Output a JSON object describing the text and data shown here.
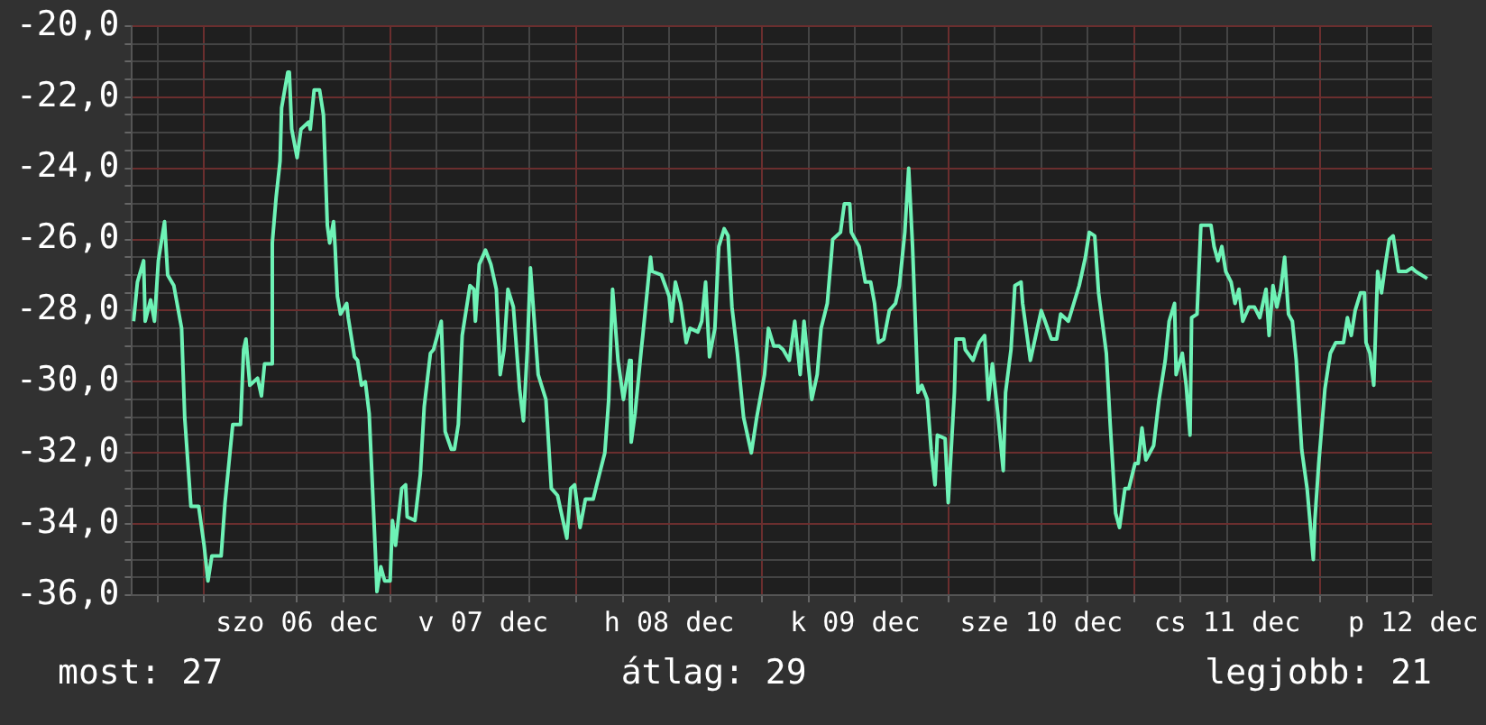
{
  "chart_data": {
    "type": "line",
    "grid": true,
    "legend": false,
    "marker": "none",
    "line_style": "solid",
    "xlim": [
      "--12-05T14:42",
      "--12-12T14:24"
    ],
    "xticks": [
      {
        "value": "--12-05T18:00",
        "label": null
      },
      {
        "value": "--12-06T00:00",
        "label": null
      },
      {
        "value": "--12-06T06:00",
        "label": null
      },
      {
        "value": "--12-06T12:00",
        "label": "szo 06 dec"
      },
      {
        "value": "--12-06T18:00",
        "label": null
      },
      {
        "value": "--12-07T00:00",
        "label": null
      },
      {
        "value": "--12-07T06:00",
        "label": null
      },
      {
        "value": "--12-07T12:00",
        "label": "v 07 dec"
      },
      {
        "value": "--12-07T18:00",
        "label": null
      },
      {
        "value": "--12-08T00:00",
        "label": null
      },
      {
        "value": "--12-08T06:00",
        "label": null
      },
      {
        "value": "--12-08T12:00",
        "label": "h 08 dec"
      },
      {
        "value": "--12-08T18:00",
        "label": null
      },
      {
        "value": "--12-09T00:00",
        "label": null
      },
      {
        "value": "--12-09T06:00",
        "label": null
      },
      {
        "value": "--12-09T12:00",
        "label": "k 09 dec"
      },
      {
        "value": "--12-09T18:00",
        "label": null
      },
      {
        "value": "--12-10T00:00",
        "label": null
      },
      {
        "value": "--12-10T06:00",
        "label": null
      },
      {
        "value": "--12-10T12:00",
        "label": "sze 10 dec"
      },
      {
        "value": "--12-10T18:00",
        "label": null
      },
      {
        "value": "--12-11T00:00",
        "label": null
      },
      {
        "value": "--12-11T06:00",
        "label": null
      },
      {
        "value": "--12-11T12:00",
        "label": "cs 11 dec"
      },
      {
        "value": "--12-11T18:00",
        "label": null
      },
      {
        "value": "--12-12T00:00",
        "label": null
      },
      {
        "value": "--12-12T06:00",
        "label": null
      },
      {
        "value": "--12-12T12:00",
        "label": "p 12 dec"
      }
    ],
    "ylim": [
      -36,
      -20
    ],
    "yticks": [
      {
        "value": -36,
        "label": "-36,0"
      },
      {
        "value": -35.5,
        "label": null
      },
      {
        "value": -35,
        "label": null
      },
      {
        "value": -34.5,
        "label": null
      },
      {
        "value": -34,
        "label": "-34,0"
      },
      {
        "value": -33.5,
        "label": null
      },
      {
        "value": -33,
        "label": null
      },
      {
        "value": -32.5,
        "label": null
      },
      {
        "value": -32,
        "label": "-32,0"
      },
      {
        "value": -31.5,
        "label": null
      },
      {
        "value": -31,
        "label": null
      },
      {
        "value": -30.5,
        "label": null
      },
      {
        "value": -30,
        "label": "-30,0"
      },
      {
        "value": -29.5,
        "label": null
      },
      {
        "value": -29,
        "label": null
      },
      {
        "value": -28.5,
        "label": null
      },
      {
        "value": -28,
        "label": "-28,0"
      },
      {
        "value": -27.5,
        "label": null
      },
      {
        "value": -27,
        "label": null
      },
      {
        "value": -26.5,
        "label": null
      },
      {
        "value": -26,
        "label": "-26,0"
      },
      {
        "value": -25.5,
        "label": null
      },
      {
        "value": -25,
        "label": null
      },
      {
        "value": -24.5,
        "label": null
      },
      {
        "value": -24,
        "label": "-24,0"
      },
      {
        "value": -23.5,
        "label": null
      },
      {
        "value": -23,
        "label": null
      },
      {
        "value": -22.5,
        "label": null
      },
      {
        "value": -22,
        "label": "-22,0"
      },
      {
        "value": -21.5,
        "label": null
      },
      {
        "value": -21,
        "label": null
      },
      {
        "value": -20.5,
        "label": null
      },
      {
        "value": -20,
        "label": "-20,0"
      }
    ],
    "annotations": [
      "most: 27",
      "átlag: 29",
      "legjobb: 21"
    ],
    "series": [
      {
        "color": "#6ef2b6",
        "x": [
          "--12-05T14:54",
          "--12-05T15:24",
          "--12-05T16:12",
          "--12-05T16:24",
          "--12-05T17:06",
          "--12-05T17:36",
          "--12-05T18:06",
          "--12-05T18:54",
          "--12-05T19:18",
          "--12-05T20:06",
          "--12-05T21:06",
          "--12-05T21:30",
          "--12-05T22:18",
          "--12-05T23:18",
          "--12-06T00:00",
          "--12-06T00:30",
          "--12-06T01:00",
          "--12-06T02:12",
          "--12-06T02:42",
          "--12-06T03:42",
          "--12-06T04:42",
          "--12-06T05:06",
          "--12-06T05:24",
          "--12-06T05:54",
          "--12-06T06:54",
          "--12-06T07:24",
          "--12-06T07:48",
          "--12-06T08:36",
          "--12-06T08:48",
          "--12-06T09:18",
          "--12-06T09:48",
          "--12-06T10:00",
          "--12-06T10:48",
          "--12-06T11:00",
          "--12-06T11:18",
          "--12-06T12:00",
          "--12-06T12:30",
          "--12-06T13:30",
          "--12-06T13:42",
          "--12-06T14:12",
          "--12-06T14:54",
          "--12-06T15:24",
          "--12-06T15:54",
          "--12-06T16:12",
          "--12-06T16:42",
          "--12-06T16:54",
          "--12-06T17:12",
          "--12-06T17:36",
          "--12-06T18:24",
          "--12-06T18:36",
          "--12-06T19:24",
          "--12-06T19:48",
          "--12-06T20:18",
          "--12-06T20:48",
          "--12-06T21:18",
          "--12-06T22:06",
          "--12-06T22:18",
          "--12-06T22:48",
          "--12-06T23:18",
          "--12-07T00:00",
          "--12-07T00:18",
          "--12-07T00:42",
          "--12-07T01:30",
          "--12-07T02:00",
          "--12-07T02:12",
          "--12-07T03:12",
          "--12-07T03:54",
          "--12-07T04:24",
          "--12-07T05:12",
          "--12-07T05:36",
          "--12-07T06:36",
          "--12-07T07:06",
          "--12-07T07:54",
          "--12-07T08:18",
          "--12-07T08:48",
          "--12-07T09:18",
          "--12-07T10:18",
          "--12-07T10:48",
          "--12-07T11:00",
          "--12-07T11:30",
          "--12-07T12:18",
          "--12-07T13:00",
          "--12-07T13:42",
          "--12-07T14:12",
          "--12-07T14:42",
          "--12-07T15:12",
          "--12-07T15:54",
          "--12-07T16:42",
          "--12-07T17:12",
          "--12-07T17:42",
          "--12-07T18:06",
          "--12-07T18:36",
          "--12-07T19:06",
          "--12-07T20:06",
          "--12-07T20:48",
          "--12-07T21:36",
          "--12-07T22:48",
          "--12-07T23:18",
          "--12-07T23:48",
          "--12-08T00:30",
          "--12-08T01:12",
          "--12-08T02:12",
          "--12-08T03:00",
          "--12-08T03:42",
          "--12-08T04:12",
          "--12-08T04:42",
          "--12-08T05:24",
          "--12-08T06:06",
          "--12-08T06:54",
          "--12-08T07:06",
          "--12-08T07:36",
          "--12-08T08:24",
          "--12-08T08:36",
          "--12-08T09:36",
          "--12-08T09:48",
          "--12-08T11:00",
          "--12-08T12:00",
          "--12-08T12:18",
          "--12-08T12:48",
          "--12-08T13:30",
          "--12-08T14:12",
          "--12-08T14:42",
          "--12-08T15:42",
          "--12-08T16:12",
          "--12-08T16:42",
          "--12-08T17:12",
          "--12-08T17:54",
          "--12-08T18:24",
          "--12-08T19:06",
          "--12-08T19:36",
          "--12-08T20:06",
          "--12-08T20:48",
          "--12-08T21:36",
          "--12-08T22:36",
          "--12-08T23:18",
          "--12-09T00:18",
          "--12-09T00:48",
          "--12-09T01:30",
          "--12-09T02:12",
          "--12-09T02:42",
          "--12-09T03:30",
          "--12-09T04:12",
          "--12-09T04:54",
          "--12-09T05:24",
          "--12-09T06:24",
          "--12-09T07:06",
          "--12-09T07:36",
          "--12-09T08:24",
          "--12-09T09:06",
          "--12-09T10:06",
          "--12-09T10:36",
          "--12-09T11:18",
          "--12-09T11:30",
          "--12-09T12:30",
          "--12-09T13:18",
          "--12-09T14:00",
          "--12-09T14:30",
          "--12-09T15:00",
          "--12-09T15:42",
          "--12-09T16:24",
          "--12-09T17:12",
          "--12-09T17:42",
          "--12-09T18:24",
          "--12-09T18:54",
          "--12-09T19:24",
          "--12-09T20:06",
          "--12-09T20:36",
          "--12-09T21:18",
          "--12-09T21:48",
          "--12-09T22:18",
          "--12-09T22:36",
          "--12-09T23:36",
          "--12-10T00:00",
          "--12-10T00:48",
          "--12-10T01:00",
          "--12-10T02:00",
          "--12-10T02:12",
          "--12-10T03:12",
          "--12-10T04:00",
          "--12-10T04:42",
          "--12-10T05:12",
          "--12-10T05:42",
          "--12-10T06:24",
          "--12-10T07:06",
          "--12-10T07:24",
          "--12-10T08:06",
          "--12-10T08:36",
          "--12-10T09:24",
          "--12-10T09:36",
          "--12-10T10:36",
          "--12-10T11:18",
          "--12-10T12:00",
          "--12-10T12:30",
          "--12-10T13:18",
          "--12-10T14:00",
          "--12-10T14:30",
          "--12-10T15:30",
          "--12-10T16:12",
          "--12-10T16:54",
          "--12-10T17:42",
          "--12-10T18:12",
          "--12-10T18:54",
          "--12-10T19:24",
          "--12-10T20:24",
          "--12-10T20:54",
          "--12-10T21:36",
          "--12-10T22:06",
          "--12-10T22:48",
          "--12-10T23:18",
          "--12-11T00:06",
          "--12-11T00:30",
          "--12-11T01:00",
          "--12-11T01:30",
          "--12-11T02:30",
          "--12-11T03:12",
          "--12-11T04:00",
          "--12-11T04:30",
          "--12-11T05:12",
          "--12-11T05:24",
          "--12-11T06:12",
          "--12-11T06:42",
          "--12-11T07:12",
          "--12-11T07:24",
          "--12-11T08:06",
          "--12-11T08:36",
          "--12-11T09:54",
          "--12-11T10:18",
          "--12-11T10:48",
          "--12-11T11:18",
          "--12-11T11:48",
          "--12-11T12:30",
          "--12-11T13:00",
          "--12-11T13:30",
          "--12-11T14:00",
          "--12-11T14:48",
          "--12-11T15:30",
          "--12-11T16:12",
          "--12-11T17:00",
          "--12-11T17:24",
          "--12-11T17:54",
          "--12-11T18:24",
          "--12-11T18:54",
          "--12-11T19:24",
          "--12-11T19:54",
          "--12-11T20:24",
          "--12-11T20:54",
          "--12-11T21:36",
          "--12-11T22:18",
          "--12-11T23:06",
          "--12-11T23:18",
          "--12-11T23:48",
          "--12-12T00:36",
          "--12-12T01:18",
          "--12-12T02:00",
          "--12-12T03:00",
          "--12-12T03:30",
          "--12-12T04:00",
          "--12-12T04:30",
          "--12-12T05:12",
          "--12-12T05:42",
          "--12-12T05:54",
          "--12-12T06:24",
          "--12-12T06:54",
          "--12-12T07:24",
          "--12-12T07:54",
          "--12-12T08:24",
          "--12-12T08:54",
          "--12-12T09:24",
          "--12-12T10:06",
          "--12-12T11:06",
          "--12-12T11:48",
          "--12-12T12:18",
          "--12-12T13:48"
        ],
        "values": [
          -28.3,
          -27.2,
          -26.6,
          -28.3,
          -27.7,
          -28.3,
          -26.6,
          -25.5,
          -27,
          -27.3,
          -28.5,
          -31,
          -33.5,
          -33.5,
          -34.6,
          -35.6,
          -34.9,
          -34.9,
          -33.4,
          -31.2,
          -31.2,
          -29.1,
          -28.8,
          -30.1,
          -29.9,
          -30.4,
          -29.5,
          -29.5,
          -26.1,
          -24.8,
          -23.8,
          -22.3,
          -21.3,
          -21.3,
          -22.9,
          -23.7,
          -22.9,
          -22.7,
          -22.9,
          -21.8,
          -21.8,
          -22.5,
          -25.6,
          -26.1,
          -25.5,
          -26.2,
          -27.6,
          -28.1,
          -27.8,
          -28.2,
          -29.3,
          -29.4,
          -30.1,
          -30,
          -30.9,
          -34.8,
          -35.9,
          -35.2,
          -35.6,
          -35.6,
          -33.9,
          -34.6,
          -33,
          -32.9,
          -33.8,
          -33.9,
          -32.6,
          -30.7,
          -29.2,
          -29.1,
          -28.3,
          -31.4,
          -31.9,
          -31.9,
          -31.2,
          -28.7,
          -27.3,
          -27.4,
          -28.3,
          -26.7,
          -26.3,
          -26.7,
          -27.4,
          -29.8,
          -29.1,
          -27.4,
          -27.9,
          -30.2,
          -31.1,
          -29.1,
          -26.8,
          -28.3,
          -29.8,
          -30.5,
          -33,
          -33.2,
          -34.4,
          -33,
          -32.9,
          -34.1,
          -33.3,
          -33.3,
          -32.6,
          -32,
          -30.5,
          -27.4,
          -29.4,
          -30.5,
          -29.4,
          -31.7,
          -30.9,
          -29.1,
          -28.7,
          -26.5,
          -26.9,
          -27,
          -27.6,
          -28.3,
          -27.2,
          -27.8,
          -28.9,
          -28.5,
          -28.6,
          -28.3,
          -27.2,
          -29.3,
          -28.5,
          -26.2,
          -25.7,
          -25.9,
          -27.9,
          -29.2,
          -31,
          -32,
          -31,
          -29.8,
          -28.5,
          -29,
          -29,
          -29.1,
          -29.4,
          -28.3,
          -29.8,
          -28.3,
          -30.5,
          -29.8,
          -28.5,
          -27.8,
          -26,
          -25.8,
          -25,
          -25,
          -25.8,
          -26.2,
          -27.2,
          -27.2,
          -27.8,
          -28.9,
          -28.8,
          -28,
          -27.8,
          -27.3,
          -25.8,
          -24,
          -26.2,
          -30.3,
          -30.1,
          -30.5,
          -31.9,
          -32.9,
          -31.5,
          -31.6,
          -33.4,
          -30.3,
          -28.8,
          -28.8,
          -29.1,
          -29.4,
          -28.9,
          -28.7,
          -30.5,
          -29.5,
          -30.9,
          -32.5,
          -30.3,
          -29.1,
          -27.3,
          -27.2,
          -27.8,
          -29.4,
          -28.7,
          -28,
          -28.3,
          -28.8,
          -28.8,
          -28.1,
          -28.3,
          -27.8,
          -27.3,
          -26.5,
          -25.8,
          -25.9,
          -27.5,
          -29.2,
          -31.2,
          -33.7,
          -34.1,
          -33,
          -33,
          -32.3,
          -32.3,
          -31.3,
          -32.2,
          -31.8,
          -30.5,
          -29.4,
          -28.3,
          -27.8,
          -29.8,
          -29.2,
          -30.1,
          -31.5,
          -28.2,
          -28.1,
          -25.6,
          -25.6,
          -26.2,
          -26.6,
          -26.2,
          -26.9,
          -27.2,
          -27.8,
          -27.4,
          -28.3,
          -27.9,
          -27.9,
          -28.2,
          -27.4,
          -28.7,
          -27.3,
          -27.9,
          -27.4,
          -26.5,
          -28.1,
          -28.3,
          -29.4,
          -31.9,
          -33,
          -35,
          -33.9,
          -32.3,
          -30.2,
          -29.2,
          -28.9,
          -28.9,
          -28.2,
          -28.7,
          -28,
          -27.5,
          -27.5,
          -28.9,
          -29.2,
          -30.1,
          -26.9,
          -27.5,
          -26.7,
          -26,
          -25.9,
          -26.9,
          -26.9,
          -26.8,
          -26.9,
          -27.1
        ]
      }
    ]
  }
}
